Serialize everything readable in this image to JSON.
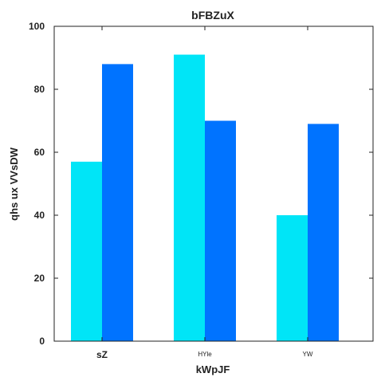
{
  "chart_data": {
    "type": "bar",
    "title": "bFBZuX",
    "xlabel": "kWpJF",
    "ylabel": "qhs ux VVsDW",
    "categories": [
      "sZ",
      "HYle",
      "YW"
    ],
    "series": [
      {
        "values": [
          57,
          91,
          40
        ],
        "color": "#00e5f7"
      },
      {
        "values": [
          88,
          70,
          69
        ],
        "color": "#0073ff"
      }
    ],
    "ylim": [
      0,
      100
    ],
    "yticks": [
      0,
      20,
      40,
      60,
      80,
      100
    ],
    "grid": false
  }
}
